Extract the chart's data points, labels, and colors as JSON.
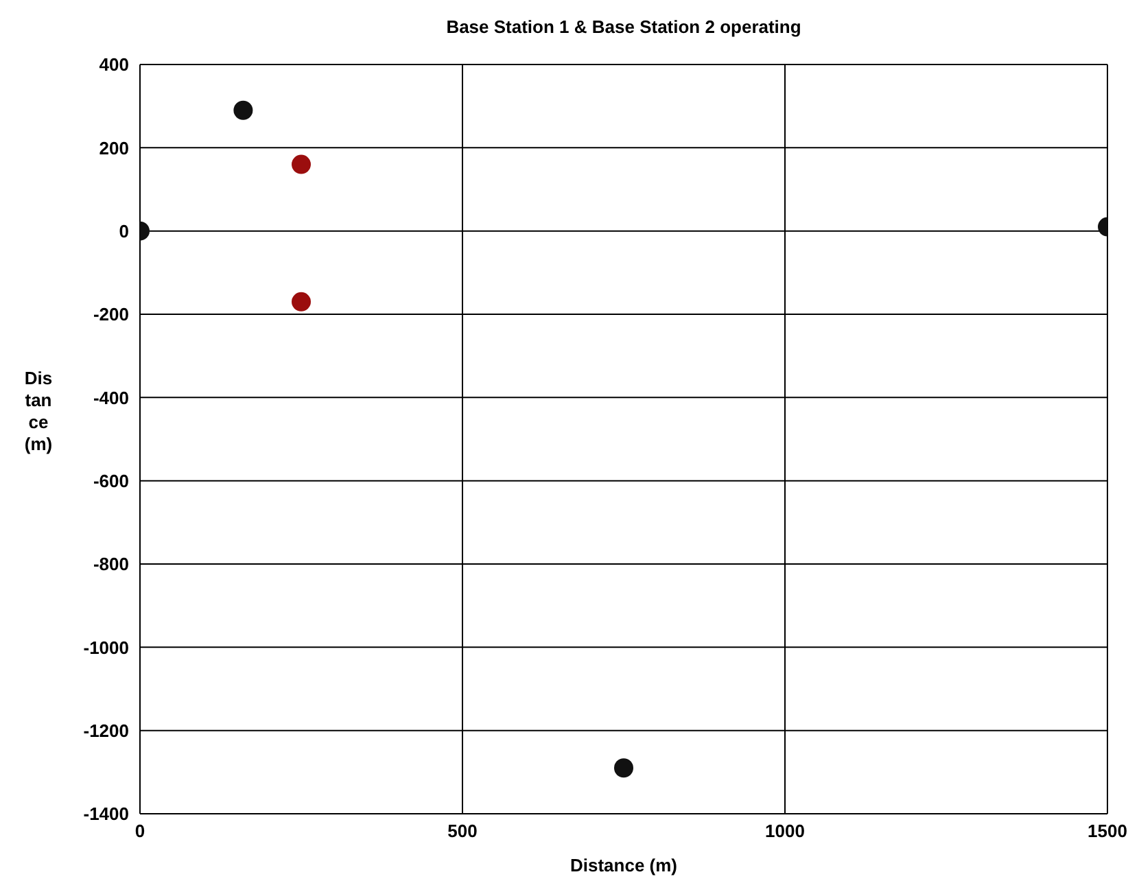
{
  "chart_data": {
    "type": "scatter",
    "title": "Base Station 1 & Base Station 2 operating",
    "xlabel": "Distance (m)",
    "ylabel": "Distance (m)",
    "x": [
      0,
      160,
      250,
      250,
      750,
      1500
    ],
    "values": [
      0,
      290,
      160,
      -170,
      -1290,
      10
    ],
    "colors": [
      "#111111",
      "#111111",
      "#9b0e0e",
      "#9b0e0e",
      "#111111",
      "#111111"
    ],
    "xlim": [
      0,
      1500
    ],
    "xticks": [
      0,
      500,
      1000,
      1500
    ],
    "ylim": [
      -1400,
      400
    ],
    "yticks": [
      -1400,
      -1200,
      -1000,
      -800,
      -600,
      -400,
      -200,
      0,
      200,
      400
    ],
    "grid": true,
    "marker": "circle"
  }
}
